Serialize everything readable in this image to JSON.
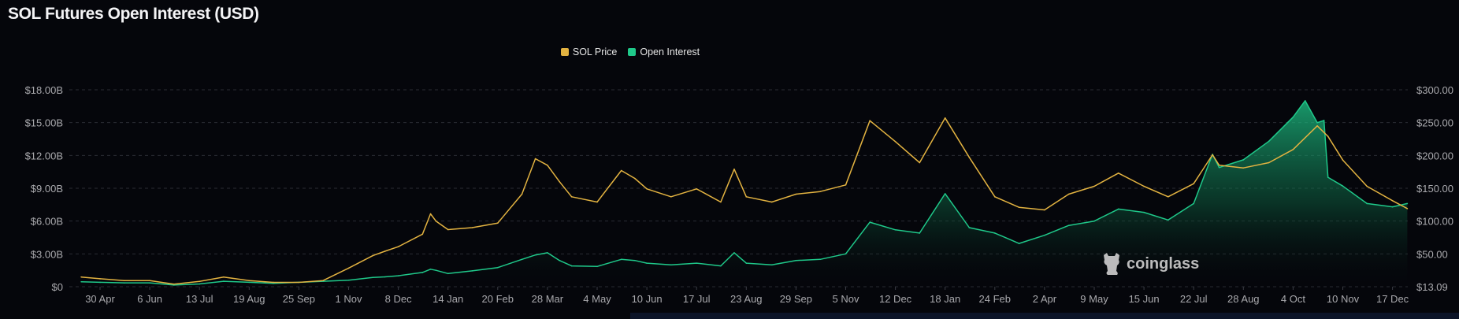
{
  "title": "SOL Futures Open Interest (USD)",
  "watermark": "coinglass",
  "colors": {
    "price": "#e3b341",
    "open_interest": "#1fc98a",
    "background": "#05060b"
  },
  "chart_data": {
    "type": "line",
    "title": "SOL Futures Open Interest (USD)",
    "legend": [
      "SOL Price",
      "Open Interest"
    ],
    "legend_position": "top-center",
    "grid": true,
    "x_unit": "days since first tick",
    "x_range": [
      -14,
      973
    ],
    "x_ticks": [
      {
        "x": 0,
        "label": "30 Apr"
      },
      {
        "x": 37,
        "label": "6 Jun"
      },
      {
        "x": 74,
        "label": "13 Jul"
      },
      {
        "x": 111,
        "label": "19 Aug"
      },
      {
        "x": 148,
        "label": "25 Sep"
      },
      {
        "x": 185,
        "label": "1 Nov"
      },
      {
        "x": 222,
        "label": "8 Dec"
      },
      {
        "x": 259,
        "label": "14 Jan"
      },
      {
        "x": 296,
        "label": "20 Feb"
      },
      {
        "x": 333,
        "label": "28 Mar"
      },
      {
        "x": 370,
        "label": "4 May"
      },
      {
        "x": 407,
        "label": "10 Jun"
      },
      {
        "x": 444,
        "label": "17 Jul"
      },
      {
        "x": 481,
        "label": "23 Aug"
      },
      {
        "x": 518,
        "label": "29 Sep"
      },
      {
        "x": 555,
        "label": "5 Nov"
      },
      {
        "x": 592,
        "label": "12 Dec"
      },
      {
        "x": 629,
        "label": "18 Jan"
      },
      {
        "x": 666,
        "label": "24 Feb"
      },
      {
        "x": 703,
        "label": "2 Apr"
      },
      {
        "x": 740,
        "label": "9 May"
      },
      {
        "x": 777,
        "label": "15 Jun"
      },
      {
        "x": 814,
        "label": "22 Jul"
      },
      {
        "x": 851,
        "label": "28 Aug"
      },
      {
        "x": 888,
        "label": "4 Oct"
      },
      {
        "x": 925,
        "label": "10 Nov"
      },
      {
        "x": 962,
        "label": "17 Dec"
      }
    ],
    "y_left": {
      "label": "Open Interest",
      "ticks": [
        "$0",
        "$3.00B",
        "$6.00B",
        "$9.00B",
        "$12.00B",
        "$15.00B",
        "$18.00B"
      ],
      "tick_values": [
        0,
        3,
        6,
        9,
        12,
        15,
        18
      ],
      "range": [
        0,
        18
      ],
      "unit": "USD billions"
    },
    "y_right": {
      "label": "SOL Price",
      "ticks": [
        "$13.09",
        "$50.00",
        "$100.00",
        "$150.00",
        "$200.00",
        "$250.00",
        "$300.00"
      ],
      "tick_values": [
        13.09,
        50,
        100,
        150,
        200,
        250,
        300
      ],
      "range": [
        13.09,
        300
      ],
      "unit": "USD"
    },
    "series": [
      {
        "name": "SOL Price",
        "axis": "right",
        "x": [
          -14,
          0,
          18,
          37,
          55,
          74,
          92,
          111,
          129,
          148,
          166,
          185,
          203,
          212,
          222,
          240,
          246,
          250,
          259,
          277,
          296,
          314,
          324,
          333,
          342,
          351,
          370,
          388,
          398,
          407,
          425,
          444,
          462,
          472,
          481,
          500,
          518,
          536,
          555,
          573,
          592,
          610,
          629,
          647,
          666,
          684,
          703,
          721,
          740,
          758,
          777,
          795,
          814,
          828,
          833,
          851,
          870,
          888,
          906,
          914,
          925,
          943,
          962,
          973
        ],
        "values": [
          24,
          22,
          20,
          20,
          16,
          19,
          24,
          20,
          18,
          18,
          20,
          34,
          48,
          54,
          61,
          80,
          111,
          100,
          87,
          90,
          97,
          141,
          195,
          185,
          160,
          137,
          129,
          177,
          165,
          149,
          137,
          149,
          129,
          179,
          137,
          129,
          141,
          145,
          155,
          253,
          221,
          189,
          257,
          197,
          137,
          121,
          117,
          141,
          153,
          173,
          153,
          137,
          157,
          201,
          185,
          181,
          189,
          209,
          245,
          229,
          193,
          153,
          131,
          119
        ]
      },
      {
        "name": "Open Interest",
        "axis": "left",
        "x": [
          -14,
          0,
          18,
          37,
          55,
          74,
          92,
          111,
          129,
          148,
          166,
          185,
          203,
          212,
          222,
          240,
          246,
          250,
          259,
          277,
          296,
          314,
          324,
          333,
          342,
          351,
          370,
          388,
          398,
          407,
          425,
          444,
          462,
          472,
          481,
          500,
          518,
          536,
          555,
          573,
          592,
          610,
          629,
          647,
          666,
          684,
          703,
          721,
          740,
          758,
          777,
          795,
          814,
          828,
          833,
          851,
          870,
          888,
          897,
          906,
          911,
          914,
          925,
          943,
          962,
          973
        ],
        "values": [
          0.45,
          0.4,
          0.35,
          0.35,
          0.15,
          0.25,
          0.5,
          0.4,
          0.3,
          0.4,
          0.5,
          0.6,
          0.85,
          0.9,
          1.0,
          1.3,
          1.6,
          1.5,
          1.2,
          1.45,
          1.75,
          2.5,
          2.9,
          3.1,
          2.4,
          1.9,
          1.85,
          2.5,
          2.4,
          2.15,
          2.0,
          2.15,
          1.9,
          3.1,
          2.15,
          2.0,
          2.4,
          2.5,
          3.0,
          5.9,
          5.2,
          4.9,
          8.5,
          5.4,
          4.9,
          3.95,
          4.7,
          5.6,
          6.0,
          7.1,
          6.8,
          6.1,
          7.6,
          12.1,
          10.9,
          11.6,
          13.3,
          15.5,
          17.0,
          15.0,
          15.2,
          10.0,
          9.2,
          7.6,
          7.3,
          7.6
        ]
      }
    ]
  }
}
